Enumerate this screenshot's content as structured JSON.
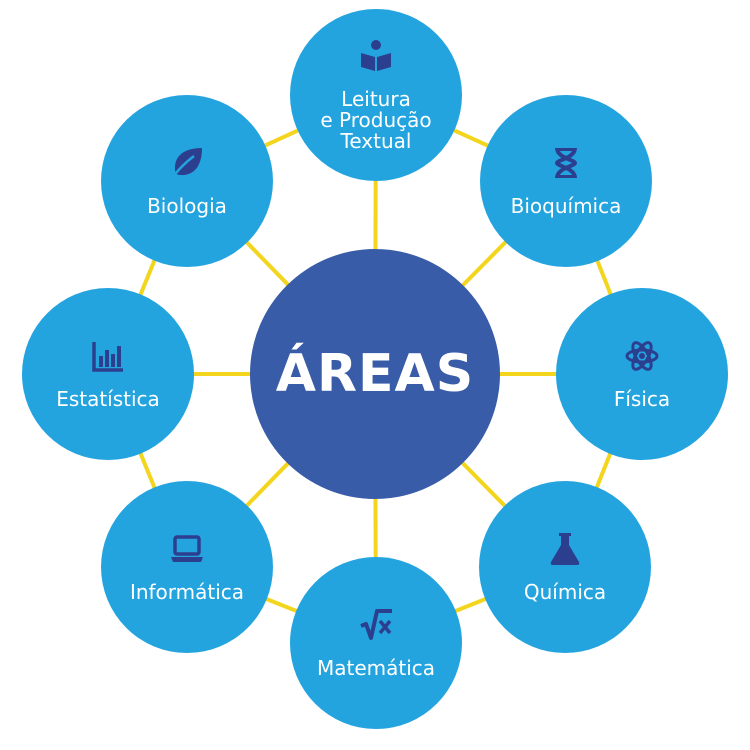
{
  "center": {
    "title": "ÁREAS"
  },
  "colors": {
    "center": "#395ca8",
    "node": "#24a4df",
    "connector": "#f3d51d",
    "icon": "#2c3f8e"
  },
  "areas": [
    {
      "label": "Leitura\ne Produção\nTextual",
      "icon": "book-reader-icon"
    },
    {
      "label": "Bioquímica",
      "icon": "dna-icon"
    },
    {
      "label": "Física",
      "icon": "atom-icon"
    },
    {
      "label": "Química",
      "icon": "flask-icon"
    },
    {
      "label": "Matemática",
      "icon": "square-root-icon"
    },
    {
      "label": "Informática",
      "icon": "laptop-icon"
    },
    {
      "label": "Estatística",
      "icon": "bar-chart-icon"
    },
    {
      "label": "Biologia",
      "icon": "leaf-icon"
    }
  ]
}
